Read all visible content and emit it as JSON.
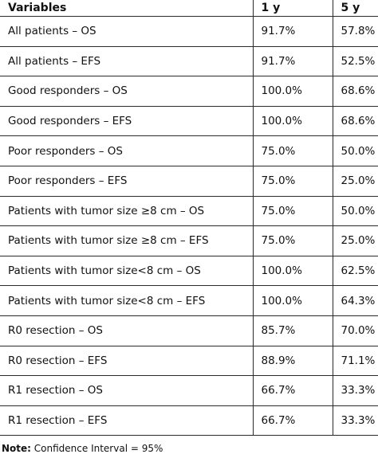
{
  "table": {
    "headers": [
      "Variables",
      "1 y",
      "5 y"
    ],
    "rows": [
      [
        "All patients – OS",
        "91.7%",
        "57.8%"
      ],
      [
        "All patients – EFS",
        "91.7%",
        "52.5%"
      ],
      [
        "Good responders – OS",
        "100.0%",
        "68.6%"
      ],
      [
        "Good responders – EFS",
        "100.0%",
        "68.6%"
      ],
      [
        "Poor responders – OS",
        "75.0%",
        "50.0%"
      ],
      [
        "Poor responders – EFS",
        "75.0%",
        "25.0%"
      ],
      [
        "Patients with tumor size ≥8 cm – OS",
        "75.0%",
        "50.0%"
      ],
      [
        "Patients with tumor size ≥8 cm – EFS",
        "75.0%",
        "25.0%"
      ],
      [
        "Patients with tumor size<8 cm – OS",
        "100.0%",
        "62.5%"
      ],
      [
        "Patients with tumor size<8 cm – EFS",
        "100.0%",
        "64.3%"
      ],
      [
        "R0 resection – OS",
        "85.7%",
        "70.0%"
      ],
      [
        "R0 resection – EFS",
        "88.9%",
        "71.1%"
      ],
      [
        "R1 resection – OS",
        "66.7%",
        "33.3%"
      ],
      [
        "R1 resection – EFS",
        "66.7%",
        "33.3%"
      ]
    ]
  },
  "note": {
    "label": "Note:",
    "text": " Confidence Interval = 95%"
  }
}
